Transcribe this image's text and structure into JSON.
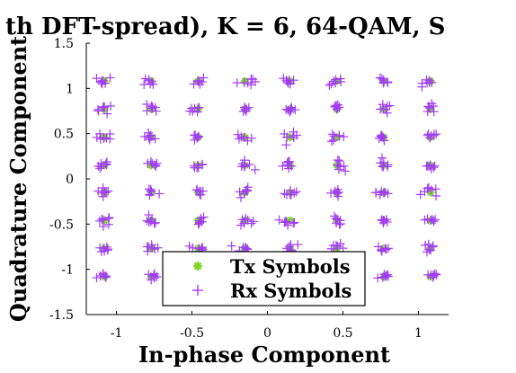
{
  "chart_data": {
    "type": "scatter",
    "title": "th DFT-spread), K = 6, 64-QAM, S",
    "xlabel": "In-phase Component",
    "ylabel": "Quadrature Component",
    "xlim": [
      -1.2,
      1.2
    ],
    "ylim": [
      -1.5,
      1.5
    ],
    "xticks": [
      -1,
      -0.5,
      0,
      0.5,
      1
    ],
    "xtick_labels": [
      "-1",
      "-0.5",
      "0",
      "0.5",
      "1"
    ],
    "yticks": [
      -1.5,
      -1,
      -0.5,
      0,
      0.5,
      1,
      1.5
    ],
    "ytick_labels": [
      "-1.5",
      "-1",
      "-0.5",
      "0",
      "0.5",
      "1",
      "1.5"
    ],
    "grid": false,
    "legend_position": "bottom-right",
    "constellation_levels": [
      -1.08,
      -0.77,
      -0.46,
      -0.15,
      0.15,
      0.46,
      0.77,
      1.08
    ],
    "series": [
      {
        "name": "Tx Symbols",
        "marker": "asterisk",
        "color": "#7FD62B"
      },
      {
        "name": "Rx Symbols",
        "marker": "plus",
        "color": "#A23BF6",
        "noise_std": 0.025,
        "points_per_symbol": 7
      }
    ]
  }
}
